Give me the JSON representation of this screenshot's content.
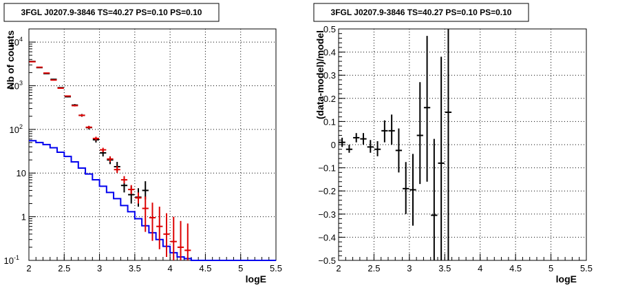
{
  "chart_data": [
    {
      "type": "line",
      "title": "3FGL J0207.9-3846 TS=40.27 PS=0.10 PS=0.10",
      "xlabel": "logE",
      "ylabel": "Nb of counts",
      "xlim": [
        2,
        5.5
      ],
      "ylim": [
        0.1,
        20000
      ],
      "yscale": "log",
      "grid": true,
      "x_ticks": [
        "2",
        "2.5",
        "3",
        "3.5",
        "4",
        "4.5",
        "5",
        "5.5"
      ],
      "y_ticks": [
        "10^-1",
        "1",
        "10",
        "10^2",
        "10^3",
        "10^4"
      ],
      "series": [
        {
          "color": "#0000ee",
          "style": "step",
          "edges": [
            2.0,
            2.1,
            2.2,
            2.3,
            2.4,
            2.5,
            2.6,
            2.7,
            2.8,
            2.9,
            3.0,
            3.1,
            3.2,
            3.3,
            3.4,
            3.5,
            3.6,
            3.7,
            3.8,
            3.9,
            4.0,
            4.1,
            4.2,
            4.3,
            4.4,
            4.5,
            4.6,
            4.7,
            4.8,
            4.9,
            5.0,
            5.1,
            5.2,
            5.3,
            5.4,
            5.5
          ],
          "values": [
            55,
            50,
            45,
            38,
            30,
            24,
            18,
            13,
            9.5,
            7.0,
            5.0,
            3.6,
            2.6,
            1.8,
            1.3,
            0.9,
            0.62,
            0.43,
            0.3,
            0.21,
            0.15,
            0.12,
            0.11,
            0.1,
            0.1,
            0.1,
            0.1,
            0.1,
            0.1,
            0.1,
            0.1,
            0.1,
            0.1,
            0.1,
            0.1
          ]
        },
        {
          "color": "#000000",
          "style": "errorbar",
          "points": [
            [
              2.05,
              3600,
              3550,
              3650
            ],
            [
              2.15,
              2600,
              2550,
              2650
            ],
            [
              2.25,
              1900,
              1860,
              1940
            ],
            [
              2.35,
              1400,
              1360,
              1440
            ],
            [
              2.45,
              900,
              870,
              930
            ],
            [
              2.55,
              560,
              540,
              580
            ],
            [
              2.65,
              360,
              340,
              380
            ],
            [
              2.75,
              210,
              195,
              225
            ],
            [
              2.85,
              110,
              100,
              120
            ],
            [
              2.95,
              58,
              50,
              66
            ],
            [
              3.05,
              29,
              24,
              34
            ],
            [
              3.15,
              20,
              16,
              24
            ],
            [
              3.25,
              14,
              11,
              18
            ],
            [
              3.35,
              5.2,
              3.6,
              7.5
            ],
            [
              3.45,
              3.2,
              2.0,
              5.0
            ],
            [
              3.55,
              2.8,
              1.7,
              4.5
            ],
            [
              3.65,
              4.0,
              2.5,
              6.5
            ]
          ]
        },
        {
          "color": "#dd0000",
          "style": "errorbar",
          "points": [
            [
              2.05,
              3550,
              3500,
              3600
            ],
            [
              2.15,
              2650,
              2600,
              2700
            ],
            [
              2.25,
              1950,
              1900,
              2000
            ],
            [
              2.35,
              1350,
              1310,
              1390
            ],
            [
              2.45,
              880,
              850,
              910
            ],
            [
              2.55,
              580,
              560,
              600
            ],
            [
              2.65,
              350,
              335,
              365
            ],
            [
              2.75,
              210,
              198,
              222
            ],
            [
              2.85,
              112,
              104,
              120
            ],
            [
              2.95,
              62,
              56,
              68
            ],
            [
              3.05,
              34,
              30,
              38
            ],
            [
              3.15,
              21,
              18,
              24
            ],
            [
              3.25,
              12,
              10,
              14.5
            ],
            [
              3.35,
              7.0,
              5.8,
              8.5
            ],
            [
              3.45,
              4.2,
              3.3,
              5.3
            ],
            [
              3.55,
              2.7,
              2.0,
              3.6
            ],
            [
              3.65,
              1.55,
              0.45,
              2.9
            ],
            [
              3.75,
              0.95,
              0.28,
              2.1
            ],
            [
              3.85,
              0.6,
              0.18,
              1.7
            ],
            [
              3.95,
              0.4,
              0.12,
              1.2
            ],
            [
              4.05,
              0.27,
              0.1,
              1.0
            ],
            [
              4.15,
              0.2,
              0.1,
              0.8
            ],
            [
              4.25,
              0.17,
              0.1,
              0.7
            ]
          ]
        }
      ]
    },
    {
      "type": "scatter",
      "title": "3FGL J0207.9-3846 TS=40.27 PS=0.10 PS=0.10",
      "xlabel": "logE",
      "ylabel": "(data-model)/model",
      "xlim": [
        2,
        5.5
      ],
      "ylim": [
        -0.5,
        0.5
      ],
      "grid": true,
      "x_ticks": [
        "2",
        "2.5",
        "3",
        "3.5",
        "4",
        "4.5",
        "5",
        "5.5"
      ],
      "y_ticks": [
        "-0.5",
        "-0.4",
        "-0.3",
        "-0.2",
        "-0.1",
        "0",
        "0.1",
        "0.2",
        "0.3",
        "0.4",
        "0.5"
      ],
      "series": [
        {
          "color": "#000000",
          "style": "errorbar",
          "points": [
            [
              2.05,
              0.01,
              -0.01,
              0.03
            ],
            [
              2.15,
              -0.02,
              -0.035,
              0.0
            ],
            [
              2.25,
              0.03,
              0.01,
              0.05
            ],
            [
              2.35,
              0.025,
              0.0,
              0.05
            ],
            [
              2.45,
              -0.01,
              -0.035,
              0.02
            ],
            [
              2.55,
              -0.02,
              -0.05,
              0.015
            ],
            [
              2.65,
              0.06,
              0.01,
              0.105
            ],
            [
              2.75,
              0.06,
              0.0,
              0.13
            ],
            [
              2.85,
              -0.025,
              -0.12,
              0.07
            ],
            [
              2.95,
              -0.19,
              -0.3,
              -0.075
            ],
            [
              3.05,
              -0.195,
              -0.35,
              -0.04
            ],
            [
              3.15,
              0.04,
              -0.17,
              0.27
            ],
            [
              3.25,
              0.16,
              -0.16,
              0.47
            ],
            [
              3.35,
              -0.305,
              -0.5,
              0.025
            ],
            [
              3.45,
              -0.08,
              -0.5,
              0.38
            ],
            [
              3.55,
              0.14,
              -0.5,
              0.5
            ]
          ]
        }
      ]
    }
  ]
}
